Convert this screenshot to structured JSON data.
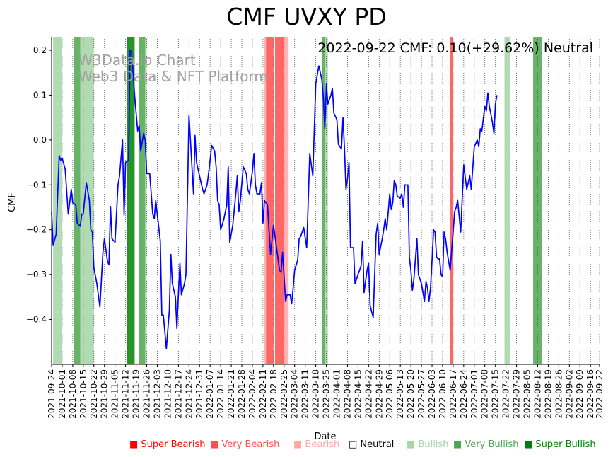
{
  "title": "CMF UVXY PD",
  "annotation": "2022-09-22 CMF: 0.10(+29.62%) Neutral",
  "watermark": [
    "W3Data.io Chart",
    "Web3 Data & NFT Platform"
  ],
  "chart_data": {
    "type": "line",
    "title": "CMF UVXY PD",
    "xlabel": "Date",
    "ylabel": "CMF",
    "ylim": [
      -0.5,
      0.23
    ],
    "yticks": [
      -0.4,
      -0.3,
      -0.2,
      -0.1,
      0.0,
      0.1,
      0.2
    ],
    "ytick_labels": [
      "−0.4",
      "−0.3",
      "−0.2",
      "−0.1",
      "0.0",
      "0.1",
      "0.2"
    ],
    "xlim": [
      "2021-09-24",
      "2022-09-22"
    ],
    "xticks": [
      "2021-09-24",
      "2021-10-01",
      "2021-10-08",
      "2021-10-15",
      "2021-10-22",
      "2021-10-29",
      "2021-11-05",
      "2021-11-12",
      "2021-11-19",
      "2021-11-26",
      "2021-12-03",
      "2021-12-10",
      "2021-12-17",
      "2021-12-24",
      "2021-12-31",
      "2022-01-07",
      "2022-01-14",
      "2022-01-21",
      "2022-01-28",
      "2022-02-04",
      "2022-02-11",
      "2022-02-18",
      "2022-02-25",
      "2022-03-04",
      "2022-03-11",
      "2022-03-18",
      "2022-03-25",
      "2022-04-01",
      "2022-04-08",
      "2022-04-15",
      "2022-04-22",
      "2022-04-29",
      "2022-05-06",
      "2022-05-13",
      "2022-05-20",
      "2022-05-27",
      "2022-06-03",
      "2022-06-10",
      "2022-06-17",
      "2022-06-24",
      "2022-07-01",
      "2022-07-08",
      "2022-07-15",
      "2022-07-22",
      "2022-07-29",
      "2022-08-05",
      "2022-08-12",
      "2022-08-19",
      "2022-08-26",
      "2022-09-02",
      "2022-09-09",
      "2022-09-16",
      "2022-09-22"
    ],
    "grid": "vertical dotted",
    "series": [
      {
        "color": "#0000ff",
        "points": [
          [
            "2021-09-24",
            -0.16
          ],
          [
            "2021-09-25",
            -0.235
          ],
          [
            "2021-09-27",
            -0.21
          ],
          [
            "2021-09-28",
            -0.125
          ],
          [
            "2021-09-29",
            -0.035
          ],
          [
            "2021-09-30",
            -0.045
          ],
          [
            "2021-10-01",
            -0.04
          ],
          [
            "2021-10-03",
            -0.065
          ],
          [
            "2021-10-05",
            -0.165
          ],
          [
            "2021-10-06",
            -0.14
          ],
          [
            "2021-10-07",
            -0.11
          ],
          [
            "2021-10-08",
            -0.14
          ],
          [
            "2021-10-10",
            -0.145
          ],
          [
            "2021-10-11",
            -0.185
          ],
          [
            "2021-10-13",
            -0.192
          ],
          [
            "2021-10-14",
            -0.165
          ],
          [
            "2021-10-15",
            -0.165
          ],
          [
            "2021-10-17",
            -0.095
          ],
          [
            "2021-10-19",
            -0.135
          ],
          [
            "2021-10-20",
            -0.2
          ],
          [
            "2021-10-21",
            -0.205
          ],
          [
            "2021-10-22",
            -0.285
          ],
          [
            "2021-10-24",
            -0.32
          ],
          [
            "2021-10-26",
            -0.372
          ],
          [
            "2021-10-28",
            -0.25
          ],
          [
            "2021-10-29",
            -0.22
          ],
          [
            "2021-10-31",
            -0.27
          ],
          [
            "2021-11-01",
            -0.278
          ],
          [
            "2021-11-02",
            -0.148
          ],
          [
            "2021-11-03",
            -0.22
          ],
          [
            "2021-11-05",
            -0.228
          ],
          [
            "2021-11-07",
            -0.1
          ],
          [
            "2021-11-08",
            -0.08
          ],
          [
            "2021-11-10",
            0.0
          ],
          [
            "2021-11-11",
            -0.167
          ],
          [
            "2021-11-12",
            -0.05
          ],
          [
            "2021-11-14",
            -0.045
          ],
          [
            "2021-11-15",
            0.2
          ],
          [
            "2021-11-16",
            0.195
          ],
          [
            "2021-11-18",
            0.1
          ],
          [
            "2021-11-20",
            0.02
          ],
          [
            "2021-11-21",
            0.032
          ],
          [
            "2021-11-22",
            -0.025
          ],
          [
            "2021-11-24",
            0.015
          ],
          [
            "2021-11-25",
            0.0
          ],
          [
            "2021-11-26",
            -0.075
          ],
          [
            "2021-11-28",
            -0.075
          ],
          [
            "2021-11-30",
            -0.165
          ],
          [
            "2021-12-01",
            -0.175
          ],
          [
            "2021-12-02",
            -0.135
          ],
          [
            "2021-12-05",
            -0.225
          ],
          [
            "2021-12-06",
            -0.39
          ],
          [
            "2021-12-07",
            -0.39
          ],
          [
            "2021-12-09",
            -0.465
          ],
          [
            "2021-12-11",
            -0.38
          ],
          [
            "2021-12-12",
            -0.255
          ],
          [
            "2021-12-13",
            -0.32
          ],
          [
            "2021-12-15",
            -0.35
          ],
          [
            "2021-12-16",
            -0.42
          ],
          [
            "2021-12-17",
            -0.345
          ],
          [
            "2021-12-18",
            -0.275
          ],
          [
            "2021-12-19",
            -0.345
          ],
          [
            "2021-12-21",
            -0.32
          ],
          [
            "2021-12-22",
            -0.3
          ],
          [
            "2021-12-24",
            0.055
          ],
          [
            "2021-12-27",
            -0.12
          ],
          [
            "2021-12-28",
            0.01
          ],
          [
            "2021-12-29",
            -0.05
          ],
          [
            "2021-12-31",
            -0.08
          ],
          [
            "2022-01-02",
            -0.11
          ],
          [
            "2022-01-03",
            -0.12
          ],
          [
            "2022-01-05",
            -0.1
          ],
          [
            "2022-01-06",
            -0.075
          ],
          [
            "2022-01-07",
            -0.045
          ],
          [
            "2022-01-08",
            -0.012
          ],
          [
            "2022-01-10",
            -0.025
          ],
          [
            "2022-01-11",
            -0.06
          ],
          [
            "2022-01-12",
            -0.135
          ],
          [
            "2022-01-13",
            -0.145
          ],
          [
            "2022-01-14",
            -0.2
          ],
          [
            "2022-01-16",
            -0.178
          ],
          [
            "2022-01-18",
            -0.145
          ],
          [
            "2022-01-19",
            -0.06
          ],
          [
            "2022-01-20",
            -0.228
          ],
          [
            "2022-01-22",
            -0.19
          ],
          [
            "2022-01-24",
            -0.12
          ],
          [
            "2022-01-25",
            -0.08
          ],
          [
            "2022-01-26",
            -0.16
          ],
          [
            "2022-01-27",
            -0.135
          ],
          [
            "2022-01-29",
            -0.06
          ],
          [
            "2022-01-31",
            -0.075
          ],
          [
            "2022-02-01",
            -0.11
          ],
          [
            "2022-02-02",
            -0.12
          ],
          [
            "2022-02-04",
            -0.07
          ],
          [
            "2022-02-05",
            -0.03
          ],
          [
            "2022-02-06",
            -0.1
          ],
          [
            "2022-02-07",
            -0.12
          ],
          [
            "2022-02-09",
            -0.12
          ],
          [
            "2022-02-10",
            -0.095
          ],
          [
            "2022-02-11",
            -0.185
          ],
          [
            "2022-02-12",
            -0.135
          ],
          [
            "2022-02-14",
            -0.145
          ],
          [
            "2022-02-16",
            -0.255
          ],
          [
            "2022-02-18",
            -0.19
          ],
          [
            "2022-02-21",
            -0.265
          ],
          [
            "2022-02-22",
            -0.29
          ],
          [
            "2022-02-23",
            -0.295
          ],
          [
            "2022-02-24",
            -0.25
          ],
          [
            "2022-02-26",
            -0.36
          ],
          [
            "2022-02-27",
            -0.345
          ],
          [
            "2022-03-01",
            -0.345
          ],
          [
            "2022-03-02",
            -0.365
          ],
          [
            "2022-03-03",
            -0.33
          ],
          [
            "2022-03-04",
            -0.29
          ],
          [
            "2022-03-06",
            -0.268
          ],
          [
            "2022-03-07",
            -0.22
          ],
          [
            "2022-03-08",
            -0.215
          ],
          [
            "2022-03-10",
            -0.195
          ],
          [
            "2022-03-12",
            -0.24
          ],
          [
            "2022-03-14",
            -0.03
          ],
          [
            "2022-03-16",
            -0.08
          ],
          [
            "2022-03-18",
            0.125
          ],
          [
            "2022-03-20",
            0.165
          ],
          [
            "2022-03-22",
            0.135
          ],
          [
            "2022-03-23",
            0.095
          ],
          [
            "2022-03-24",
            0.025
          ],
          [
            "2022-03-25",
            0.125
          ],
          [
            "2022-03-26",
            0.08
          ],
          [
            "2022-03-28",
            0.1
          ],
          [
            "2022-03-29",
            0.115
          ],
          [
            "2022-03-30",
            0.06
          ],
          [
            "2022-04-01",
            0.045
          ],
          [
            "2022-04-02",
            -0.01
          ],
          [
            "2022-04-04",
            -0.02
          ],
          [
            "2022-04-05",
            0.05
          ],
          [
            "2022-04-06",
            -0.02
          ],
          [
            "2022-04-07",
            -0.11
          ],
          [
            "2022-04-08",
            -0.085
          ],
          [
            "2022-04-09",
            -0.05
          ],
          [
            "2022-04-10",
            -0.24
          ],
          [
            "2022-04-12",
            -0.24
          ],
          [
            "2022-04-13",
            -0.32
          ],
          [
            "2022-04-15",
            -0.3
          ],
          [
            "2022-04-17",
            -0.28
          ],
          [
            "2022-04-18",
            -0.225
          ],
          [
            "2022-04-19",
            -0.34
          ],
          [
            "2022-04-21",
            -0.29
          ],
          [
            "2022-04-22",
            -0.275
          ],
          [
            "2022-04-23",
            -0.37
          ],
          [
            "2022-04-25",
            -0.395
          ],
          [
            "2022-04-26",
            -0.3
          ],
          [
            "2022-04-27",
            -0.21
          ],
          [
            "2022-04-28",
            -0.185
          ],
          [
            "2022-04-29",
            -0.255
          ],
          [
            "2022-05-01",
            -0.22
          ],
          [
            "2022-05-02",
            -0.2
          ],
          [
            "2022-05-03",
            -0.175
          ],
          [
            "2022-05-04",
            -0.2
          ],
          [
            "2022-05-06",
            -0.12
          ],
          [
            "2022-05-07",
            -0.155
          ],
          [
            "2022-05-08",
            -0.14
          ],
          [
            "2022-05-09",
            -0.09
          ],
          [
            "2022-05-10",
            -0.1
          ],
          [
            "2022-05-11",
            -0.125
          ],
          [
            "2022-05-13",
            -0.13
          ],
          [
            "2022-05-14",
            -0.12
          ],
          [
            "2022-05-15",
            -0.15
          ],
          [
            "2022-05-16",
            -0.1
          ],
          [
            "2022-05-18",
            -0.1
          ],
          [
            "2022-05-19",
            -0.26
          ],
          [
            "2022-05-20",
            -0.29
          ],
          [
            "2022-05-21",
            -0.335
          ],
          [
            "2022-05-22",
            -0.31
          ],
          [
            "2022-05-24",
            -0.22
          ],
          [
            "2022-05-25",
            -0.3
          ],
          [
            "2022-05-27",
            -0.32
          ],
          [
            "2022-05-28",
            -0.34
          ],
          [
            "2022-05-29",
            -0.36
          ],
          [
            "2022-05-30",
            -0.315
          ],
          [
            "2022-05-31",
            -0.33
          ],
          [
            "2022-06-01",
            -0.36
          ],
          [
            "2022-06-02",
            -0.33
          ],
          [
            "2022-06-03",
            -0.27
          ],
          [
            "2022-06-04",
            -0.2
          ],
          [
            "2022-06-05",
            -0.205
          ],
          [
            "2022-06-06",
            -0.26
          ],
          [
            "2022-06-07",
            -0.265
          ],
          [
            "2022-06-08",
            -0.265
          ],
          [
            "2022-06-09",
            -0.3
          ],
          [
            "2022-06-10",
            -0.305
          ],
          [
            "2022-06-11",
            -0.205
          ],
          [
            "2022-06-12",
            -0.22
          ],
          [
            "2022-06-13",
            -0.25
          ],
          [
            "2022-06-15",
            -0.29
          ],
          [
            "2022-06-17",
            -0.205
          ],
          [
            "2022-06-18",
            -0.16
          ],
          [
            "2022-06-19",
            -0.15
          ],
          [
            "2022-06-20",
            -0.135
          ],
          [
            "2022-06-22",
            -0.205
          ],
          [
            "2022-06-24",
            -0.055
          ],
          [
            "2022-06-26",
            -0.11
          ],
          [
            "2022-06-27",
            -0.095
          ],
          [
            "2022-06-28",
            -0.08
          ],
          [
            "2022-06-29",
            -0.11
          ],
          [
            "2022-07-01",
            -0.015
          ],
          [
            "2022-07-03",
            0.0
          ],
          [
            "2022-07-04",
            -0.015
          ],
          [
            "2022-07-05",
            0.025
          ],
          [
            "2022-07-06",
            0.02
          ],
          [
            "2022-07-08",
            0.075
          ],
          [
            "2022-07-09",
            0.065
          ],
          [
            "2022-07-10",
            0.105
          ],
          [
            "2022-07-11",
            0.075
          ],
          [
            "2022-07-13",
            0.04
          ],
          [
            "2022-07-14",
            0.015
          ],
          [
            "2022-07-15",
            0.08
          ],
          [
            "2022-07-16",
            0.1
          ]
        ]
      }
    ],
    "bands": [
      {
        "start": "2021-09-25",
        "end": "2021-10-01",
        "sentiment": "Bullish"
      },
      {
        "start": "2021-10-09",
        "end": "2021-10-13",
        "sentiment": "Very Bullish"
      },
      {
        "start": "2021-10-13",
        "end": "2021-10-22",
        "sentiment": "Bullish"
      },
      {
        "start": "2021-11-13",
        "end": "2021-11-18",
        "sentiment": "Super Bullish"
      },
      {
        "start": "2021-11-21",
        "end": "2021-11-25",
        "sentiment": "Very Bullish"
      },
      {
        "start": "2021-11-25",
        "end": "2021-11-26",
        "sentiment": "Bullish"
      },
      {
        "start": "2022-02-12",
        "end": "2022-02-13",
        "sentiment": "Bearish"
      },
      {
        "start": "2022-02-13",
        "end": "2022-02-18",
        "sentiment": "Very Bearish"
      },
      {
        "start": "2022-02-19",
        "end": "2022-02-25",
        "sentiment": "Very Bearish"
      },
      {
        "start": "2022-02-25",
        "end": "2022-02-28",
        "sentiment": "Bearish"
      },
      {
        "start": "2022-03-22",
        "end": "2022-03-24",
        "sentiment": "Very Bullish"
      },
      {
        "start": "2022-03-24",
        "end": "2022-03-26",
        "sentiment": "Bullish"
      },
      {
        "start": "2022-06-15",
        "end": "2022-06-17",
        "sentiment": "Very Bearish"
      },
      {
        "start": "2022-07-21",
        "end": "2022-07-25",
        "sentiment": "Bullish"
      },
      {
        "start": "2022-08-09",
        "end": "2022-08-15",
        "sentiment": "Very Bullish"
      }
    ]
  },
  "legend": [
    {
      "label": "Super Bearish",
      "color": "#ff0000",
      "marker": "■"
    },
    {
      "label": "Very Bearish",
      "color": "#ff4c4c",
      "marker": "■"
    },
    {
      "label": "Bearish",
      "color": "#ffa6a6",
      "marker": "■"
    },
    {
      "label": "Neutral",
      "color": "#000000",
      "marker": "□"
    },
    {
      "label": "Bullish",
      "color": "#a6d5a6",
      "marker": "■"
    },
    {
      "label": "Very Bullish",
      "color": "#4ca64c",
      "marker": "■"
    },
    {
      "label": "Super Bullish",
      "color": "#008000",
      "marker": "■"
    }
  ],
  "colors": {
    "line": "#0000ff",
    "Bullish": "#a6d5a6",
    "Very Bullish": "#4ca64c",
    "Super Bullish": "#008000",
    "Bearish": "#ffa6a6",
    "Very Bearish": "#ff4c4c",
    "Super Bearish": "#ff0000"
  }
}
